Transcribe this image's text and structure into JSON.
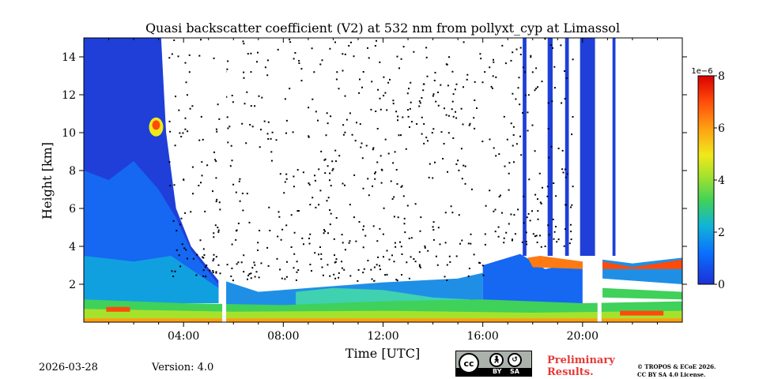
{
  "chart_data": {
    "type": "heatmap",
    "title": "Quasi backscatter coefficient (V2) at 532 nm from pollyxt_cyp at Limassol",
    "xlabel": "Time [UTC]",
    "ylabel": "Height [km]",
    "xlim_hours": [
      0,
      24
    ],
    "ylim_km": [
      0,
      15
    ],
    "x_ticks": [
      {
        "value": 4,
        "label": "04:00"
      },
      {
        "value": 8,
        "label": "08:00"
      },
      {
        "value": 12,
        "label": "12:00"
      },
      {
        "value": 16,
        "label": "16:00"
      },
      {
        "value": 20,
        "label": "20:00"
      }
    ],
    "y_ticks": [
      {
        "value": 2,
        "label": "2"
      },
      {
        "value": 4,
        "label": "4"
      },
      {
        "value": 6,
        "label": "6"
      },
      {
        "value": 8,
        "label": "8"
      },
      {
        "value": 10,
        "label": "10"
      },
      {
        "value": 12,
        "label": "12"
      },
      {
        "value": 14,
        "label": "14"
      }
    ],
    "colorbar": {
      "min": 0,
      "max": 8,
      "scale_label": "1e−6",
      "ticks": [
        {
          "value": 0,
          "label": "0"
        },
        {
          "value": 2,
          "label": "2"
        },
        {
          "value": 4,
          "label": "4"
        },
        {
          "value": 6,
          "label": "6"
        },
        {
          "value": 8,
          "label": "8"
        }
      ]
    },
    "data_gaps_hours": [
      5.55,
      20.6
    ],
    "features": [
      {
        "name": "high cloud",
        "time_hours": [
          0,
          3.3
        ],
        "height_km": [
          2,
          15
        ],
        "value_approx": 1.0
      },
      {
        "name": "cloud core",
        "time_hours": [
          2.6,
          3.2
        ],
        "height_km": [
          9.5,
          11
        ],
        "value_approx": 6.5
      },
      {
        "name": "surface aerosol layer",
        "time_hours": [
          0,
          24
        ],
        "height_km": [
          0,
          1
        ],
        "value_approx": 4.0
      },
      {
        "name": "boundary layer cloud",
        "time_hours": [
          17.5,
          24
        ],
        "height_km": [
          2,
          3.5
        ],
        "value_approx": 7.0
      },
      {
        "name": "evening high cloud",
        "time_hours": [
          19.8,
          20.5
        ],
        "height_km": [
          4,
          15
        ],
        "value_approx": 1.0
      }
    ]
  },
  "footer": {
    "date": "2026-03-28",
    "version": "Version: 4.0",
    "license_badge": {
      "by": "BY",
      "sa": "SA",
      "cc": "cc"
    },
    "preliminary_line1": "Preliminary",
    "preliminary_line2": "Results.",
    "copyright_line1": "© TROPOS & ECoE 2026.",
    "copyright_line2": "CC BY SA 4.0 License."
  }
}
